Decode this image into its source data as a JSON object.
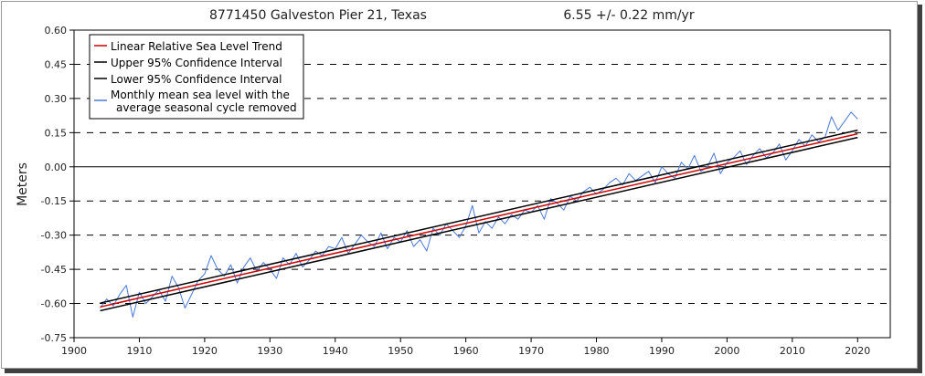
{
  "chart_data": {
    "type": "line",
    "title_left": "8771450 Galveston Pier 21, Texas",
    "title_right": "6.55 +/-  0.22 mm/yr",
    "ylabel": "Meters",
    "xlabel": "",
    "xlim": [
      1900,
      2025
    ],
    "ylim": [
      -0.75,
      0.6
    ],
    "x_ticks": [
      1900,
      1910,
      1920,
      1930,
      1940,
      1950,
      1960,
      1970,
      1980,
      1990,
      2000,
      2010,
      2020
    ],
    "x_tick_labels": [
      "1900",
      "1910",
      "1920",
      "1930",
      "1940",
      "1950",
      "1960",
      "1970",
      "1980",
      "1990",
      "2000",
      "2010",
      "2020"
    ],
    "y_ticks": [
      0.6,
      0.45,
      0.3,
      0.15,
      0.0,
      -0.15,
      -0.3,
      -0.45,
      -0.6,
      -0.75
    ],
    "y_tick_labels": [
      "0.60",
      "0.45",
      "0.30",
      "0.15",
      "0.00",
      "-0.15",
      "-0.30",
      "-0.45",
      "-0.60",
      "-0.75"
    ],
    "grid": "horizontal dashed",
    "legend_position": "top-left",
    "legend": [
      {
        "label": "Linear Relative Sea Level Trend",
        "color": "#cc0000"
      },
      {
        "label": "Upper 95% Confidence Interval",
        "color": "#000000"
      },
      {
        "label": "Lower 95% Confidence Interval",
        "color": "#000000"
      },
      {
        "label": "Monthly mean sea level with the",
        "label2": "average seasonal cycle removed",
        "color": "#4a7ad6"
      }
    ],
    "series": [
      {
        "kind": "trend",
        "color": "#cc0000",
        "x": [
          1904,
          2020
        ],
        "y": [
          -0.615,
          0.145
        ]
      },
      {
        "kind": "upper_ci",
        "color": "#000000",
        "x": [
          1904,
          2020
        ],
        "y": [
          -0.598,
          0.161
        ]
      },
      {
        "kind": "lower_ci",
        "color": "#000000",
        "x": [
          1904,
          2020
        ],
        "y": [
          -0.632,
          0.129
        ]
      },
      {
        "kind": "monthly_mean",
        "color": "#4a7ad6",
        "x": [
          1904.0,
          1905.0,
          1906.0,
          1907.0,
          1908.0,
          1909.0,
          1910.0,
          1911.0,
          1912.0,
          1913.0,
          1914.0,
          1915.0,
          1916.0,
          1917.0,
          1918.0,
          1919.0,
          1920.0,
          1921.0,
          1922.0,
          1923.0,
          1924.0,
          1925.0,
          1926.0,
          1927.0,
          1928.0,
          1929.0,
          1930.0,
          1931.0,
          1932.0,
          1933.0,
          1934.0,
          1935.0,
          1936.0,
          1937.0,
          1938.0,
          1939.0,
          1940.0,
          1941.0,
          1942.0,
          1943.0,
          1944.0,
          1945.0,
          1946.0,
          1947.0,
          1948.0,
          1949.0,
          1950.0,
          1951.0,
          1952.0,
          1953.0,
          1954.0,
          1955.0,
          1956.0,
          1957.0,
          1958.0,
          1959.0,
          1960.0,
          1961.0,
          1962.0,
          1963.0,
          1964.0,
          1965.0,
          1966.0,
          1967.0,
          1968.0,
          1969.0,
          1970.0,
          1971.0,
          1972.0,
          1973.0,
          1974.0,
          1975.0,
          1976.0,
          1977.0,
          1978.0,
          1979.0,
          1980.0,
          1981.0,
          1982.0,
          1983.0,
          1984.0,
          1985.0,
          1986.0,
          1987.0,
          1988.0,
          1989.0,
          1990.0,
          1991.0,
          1992.0,
          1993.0,
          1994.0,
          1995.0,
          1996.0,
          1997.0,
          1998.0,
          1999.0,
          2000.0,
          2001.0,
          2002.0,
          2003.0,
          2004.0,
          2005.0,
          2006.0,
          2007.0,
          2008.0,
          2009.0,
          2010.0,
          2011.0,
          2012.0,
          2013.0,
          2014.0,
          2015.0,
          2016.0,
          2017.0,
          2018.0,
          2019.0,
          2020.0
        ],
        "y": [
          -0.62,
          -0.58,
          -0.61,
          -0.56,
          -0.52,
          -0.66,
          -0.55,
          -0.6,
          -0.57,
          -0.54,
          -0.59,
          -0.48,
          -0.53,
          -0.62,
          -0.56,
          -0.5,
          -0.47,
          -0.39,
          -0.45,
          -0.48,
          -0.43,
          -0.51,
          -0.44,
          -0.4,
          -0.46,
          -0.42,
          -0.45,
          -0.49,
          -0.4,
          -0.43,
          -0.38,
          -0.44,
          -0.41,
          -0.37,
          -0.39,
          -0.35,
          -0.36,
          -0.31,
          -0.38,
          -0.34,
          -0.3,
          -0.33,
          -0.35,
          -0.29,
          -0.36,
          -0.31,
          -0.33,
          -0.28,
          -0.35,
          -0.32,
          -0.37,
          -0.27,
          -0.3,
          -0.25,
          -0.28,
          -0.31,
          -0.26,
          -0.17,
          -0.29,
          -0.24,
          -0.27,
          -0.22,
          -0.25,
          -0.21,
          -0.23,
          -0.19,
          -0.2,
          -0.17,
          -0.23,
          -0.14,
          -0.16,
          -0.19,
          -0.13,
          -0.15,
          -0.11,
          -0.09,
          -0.12,
          -0.1,
          -0.07,
          -0.05,
          -0.08,
          -0.03,
          -0.06,
          -0.04,
          -0.02,
          -0.07,
          0.0,
          -0.03,
          -0.05,
          0.02,
          -0.01,
          0.05,
          -0.02,
          0.0,
          0.06,
          -0.03,
          0.02,
          0.04,
          0.07,
          0.01,
          0.05,
          0.08,
          0.04,
          0.06,
          0.1,
          0.03,
          0.07,
          0.12,
          0.09,
          0.14,
          0.11,
          0.13,
          0.22,
          0.16,
          0.2,
          0.24,
          0.21
        ]
      }
    ]
  }
}
